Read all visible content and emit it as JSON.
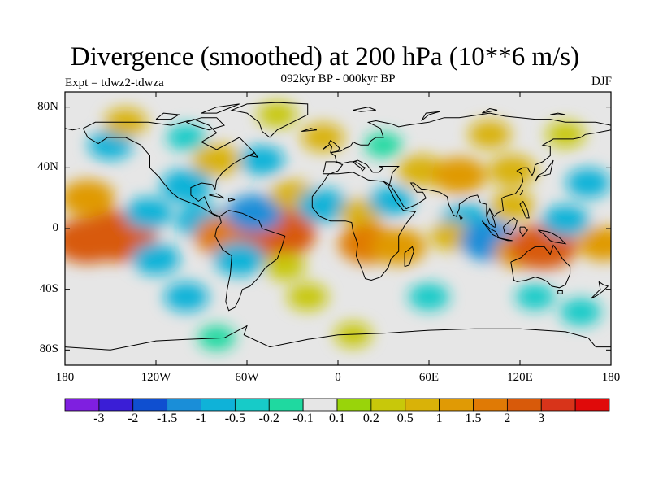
{
  "title": "Divergence (smoothed) at 200 hPa (10**6 m/s)",
  "subtitle": "092kyr BP - 000kyr BP",
  "experiment": "Expt = tdwz2-tdwza",
  "season": "DJF",
  "map": {
    "projection": "cylindrical equidistant",
    "lon_range": [
      -180,
      180
    ],
    "lat_range": [
      -90,
      90
    ],
    "background_color": "#e6e6e6",
    "coastline_color": "#000000"
  },
  "axes": {
    "y_ticks": [
      {
        "label": "80N",
        "lat": 80
      },
      {
        "label": "40N",
        "lat": 40
      },
      {
        "label": "0",
        "lat": 0
      },
      {
        "label": "40S",
        "lat": -40
      },
      {
        "label": "80S",
        "lat": -80
      }
    ],
    "x_ticks": [
      {
        "label": "180",
        "lon": -180
      },
      {
        "label": "120W",
        "lon": -120
      },
      {
        "label": "60W",
        "lon": -60
      },
      {
        "label": "0",
        "lon": 0
      },
      {
        "label": "60E",
        "lon": 60
      },
      {
        "label": "120E",
        "lon": 120
      },
      {
        "label": "180",
        "lon": 180
      }
    ]
  },
  "colorbar": {
    "colors": [
      "#7f1fe0",
      "#3a1ed6",
      "#0f4fd0",
      "#1a8ed8",
      "#0fb2d8",
      "#17cbc8",
      "#1fd9a0",
      "#e6e6e6",
      "#99d40a",
      "#c8c80a",
      "#d9b208",
      "#e09a05",
      "#e07a05",
      "#d85a0a",
      "#d8341a",
      "#e00a0a"
    ],
    "labels": [
      "-3",
      "-2",
      "-1.5",
      "-1",
      "-0.5",
      "-0.2",
      "-0.1",
      "0.1",
      "0.2",
      "0.5",
      "1",
      "1.5",
      "2",
      "3"
    ]
  },
  "field_features": [
    {
      "lon": -145,
      "lat": -5,
      "value": 2.5
    },
    {
      "lon": -165,
      "lat": -8,
      "value": 2
    },
    {
      "lon": -125,
      "lat": 10,
      "value": -0.8
    },
    {
      "lon": -120,
      "lat": -20,
      "value": -0.8
    },
    {
      "lon": -165,
      "lat": 20,
      "value": 1.2
    },
    {
      "lon": -100,
      "lat": 28,
      "value": -1
    },
    {
      "lon": -90,
      "lat": 5,
      "value": -1
    },
    {
      "lon": -75,
      "lat": -5,
      "value": 1.5
    },
    {
      "lon": -40,
      "lat": -3,
      "value": 2.5
    },
    {
      "lon": -55,
      "lat": 10,
      "value": -1.3
    },
    {
      "lon": -65,
      "lat": -20,
      "value": -1
    },
    {
      "lon": -35,
      "lat": -25,
      "value": 0.4
    },
    {
      "lon": -30,
      "lat": 22,
      "value": 0.6
    },
    {
      "lon": -10,
      "lat": 15,
      "value": -1
    },
    {
      "lon": 15,
      "lat": 10,
      "value": 0.5
    },
    {
      "lon": 20,
      "lat": -10,
      "value": 1.5
    },
    {
      "lon": 40,
      "lat": -12,
      "value": 1.2
    },
    {
      "lon": 35,
      "lat": 18,
      "value": -0.6
    },
    {
      "lon": 55,
      "lat": 38,
      "value": 0.8
    },
    {
      "lon": 80,
      "lat": 35,
      "value": 1.2
    },
    {
      "lon": 115,
      "lat": 38,
      "value": 0.8
    },
    {
      "lon": 85,
      "lat": 5,
      "value": -1
    },
    {
      "lon": 75,
      "lat": -5,
      "value": 0.5
    },
    {
      "lon": 100,
      "lat": -8,
      "value": -1.5
    },
    {
      "lon": 115,
      "lat": 15,
      "value": 0.6
    },
    {
      "lon": 120,
      "lat": -15,
      "value": 1
    },
    {
      "lon": 135,
      "lat": -12,
      "value": 2
    },
    {
      "lon": 150,
      "lat": 5,
      "value": -0.8
    },
    {
      "lon": 165,
      "lat": 30,
      "value": -0.6
    },
    {
      "lon": 175,
      "lat": -10,
      "value": 1
    },
    {
      "lon": -80,
      "lat": 45,
      "value": 0.8
    },
    {
      "lon": -50,
      "lat": 45,
      "value": -0.6
    },
    {
      "lon": -100,
      "lat": 60,
      "value": -0.3
    },
    {
      "lon": -150,
      "lat": 55,
      "value": -0.6
    },
    {
      "lon": -140,
      "lat": 70,
      "value": 0.5
    },
    {
      "lon": -40,
      "lat": 75,
      "value": 0.3
    },
    {
      "lon": -10,
      "lat": 60,
      "value": 0.5
    },
    {
      "lon": 30,
      "lat": 55,
      "value": -0.2
    },
    {
      "lon": 100,
      "lat": 62,
      "value": 0.5
    },
    {
      "lon": 150,
      "lat": 62,
      "value": 0.3
    },
    {
      "lon": -100,
      "lat": -45,
      "value": -0.6
    },
    {
      "lon": -20,
      "lat": -45,
      "value": 0.4
    },
    {
      "lon": 60,
      "lat": -45,
      "value": -0.4
    },
    {
      "lon": 130,
      "lat": -45,
      "value": -0.3
    },
    {
      "lon": 160,
      "lat": -55,
      "value": -0.4
    },
    {
      "lon": 10,
      "lat": -70,
      "value": 0.2
    },
    {
      "lon": -80,
      "lat": -72,
      "value": -0.2
    }
  ]
}
